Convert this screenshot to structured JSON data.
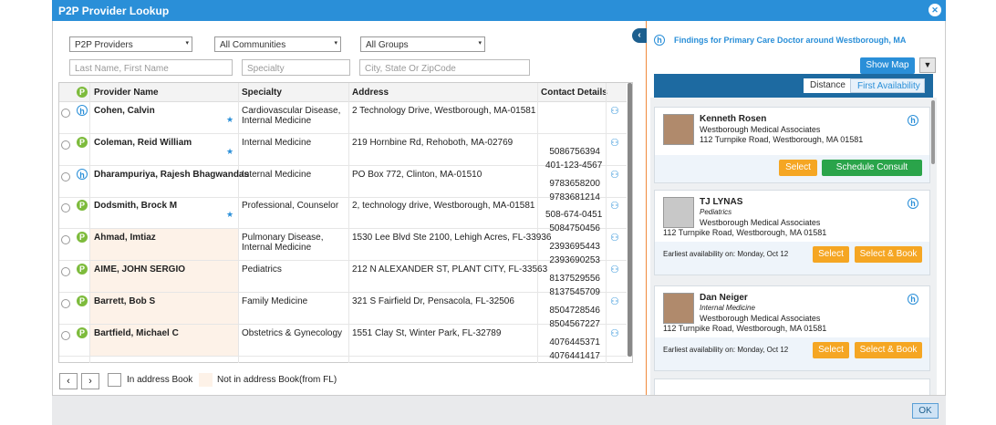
{
  "dialog": {
    "title": "P2P Provider Lookup",
    "close": "✕"
  },
  "filters": {
    "dropdowns": [
      "P2P Providers",
      "All Communities",
      "All Groups"
    ],
    "placeholders": [
      "Last Name, First Name",
      "Specialty",
      "City, State Or ZipCode"
    ]
  },
  "table": {
    "header_badge": "P",
    "headers": [
      "Provider Name",
      "Specialty",
      "Address",
      "Contact Details"
    ],
    "rows": [
      {
        "badge": "h",
        "name": "Cohen, Calvin",
        "starred": true,
        "in_address_book": true,
        "specialty": [
          "Cardiovascular Disease,",
          "Internal Medicine"
        ],
        "address": "2 Technology Drive, Westborough, MA-01581",
        "contacts": []
      },
      {
        "badge": "P",
        "name": "Coleman, Reid William",
        "starred": true,
        "in_address_book": true,
        "specialty": [
          "Internal Medicine"
        ],
        "address": "219 Hornbine Rd, Rehoboth, MA-02769",
        "contacts": [
          "5086756394",
          "401-123-4567"
        ]
      },
      {
        "badge": "h",
        "name": "Dharampuriya, Rajesh Bhagwandas",
        "starred": false,
        "in_address_book": true,
        "specialty": [
          "Internal Medicine"
        ],
        "address": "PO Box 772, Clinton, MA-01510",
        "contacts": [
          "9783658200",
          "9783681214"
        ]
      },
      {
        "badge": "P",
        "name": "Dodsmith, Brock M",
        "starred": true,
        "in_address_book": true,
        "specialty": [
          "Professional, Counselor"
        ],
        "address": "2, technology drive, Westborough, MA-01581",
        "contacts": [
          "508-674-0451",
          "5084750456"
        ]
      },
      {
        "badge": "P",
        "name": "Ahmad, Imtiaz",
        "starred": false,
        "in_address_book": false,
        "specialty": [
          "Pulmonary Disease,",
          "Internal Medicine"
        ],
        "address": "1530 Lee Blvd Ste 2100, Lehigh Acres, FL-33936",
        "contacts": [
          "2393695443",
          "2393690253"
        ]
      },
      {
        "badge": "P",
        "name": "AIME, JOHN SERGIO",
        "starred": false,
        "in_address_book": false,
        "specialty": [
          "Pediatrics"
        ],
        "address": "212 N ALEXANDER ST, PLANT CITY, FL-33563",
        "contacts": [
          "8137529556",
          "8137545709"
        ]
      },
      {
        "badge": "P",
        "name": "Barrett, Bob S",
        "starred": false,
        "in_address_book": false,
        "specialty": [
          "Family Medicine"
        ],
        "address": "321 S Fairfield Dr, Pensacola, FL-32506",
        "contacts": [
          "8504728546",
          "8504567227"
        ]
      },
      {
        "badge": "P",
        "name": "Bartfield, Michael C",
        "starred": false,
        "in_address_book": false,
        "specialty": [
          "Obstetrics & Gynecology"
        ],
        "address": "1551 Clay St, Winter Park, FL-32789",
        "contacts": [
          "4076445371",
          "4076441417"
        ]
      }
    ]
  },
  "legend": [
    "In address Book",
    "Not in address Book(from FL)"
  ],
  "results": {
    "heading": "Findings for Primary Care Doctor around Westborough, MA",
    "show_map": "Show Map",
    "tabs": [
      "Distance",
      "First Availability"
    ],
    "cards": [
      {
        "name": "Kenneth Rosen",
        "specialty": null,
        "group": "Westborough Medical Associates",
        "address": "112 Turnpike Road, Westborough, MA 01581",
        "availability": null,
        "buttons": [
          "Select",
          "Schedule Consult"
        ]
      },
      {
        "name": "TJ LYNAS",
        "specialty": "Pediatrics",
        "group": "Westborough Medical Associates",
        "address": "112 Turnpike Road, Westborough, MA 01581",
        "availability": "Earliest availability on: Monday, Oct 12",
        "buttons": [
          "Select",
          "Select & Book"
        ]
      },
      {
        "name": "Dan Neiger",
        "specialty": "Internal Medicine",
        "group": "Westborough Medical Associates",
        "address": "112 Turnpike Road, Westborough, MA 01581",
        "availability": "Earliest availability on: Monday, Oct 12",
        "buttons": [
          "Select",
          "Select & Book"
        ]
      }
    ]
  },
  "footer": {
    "ok": "OK"
  }
}
